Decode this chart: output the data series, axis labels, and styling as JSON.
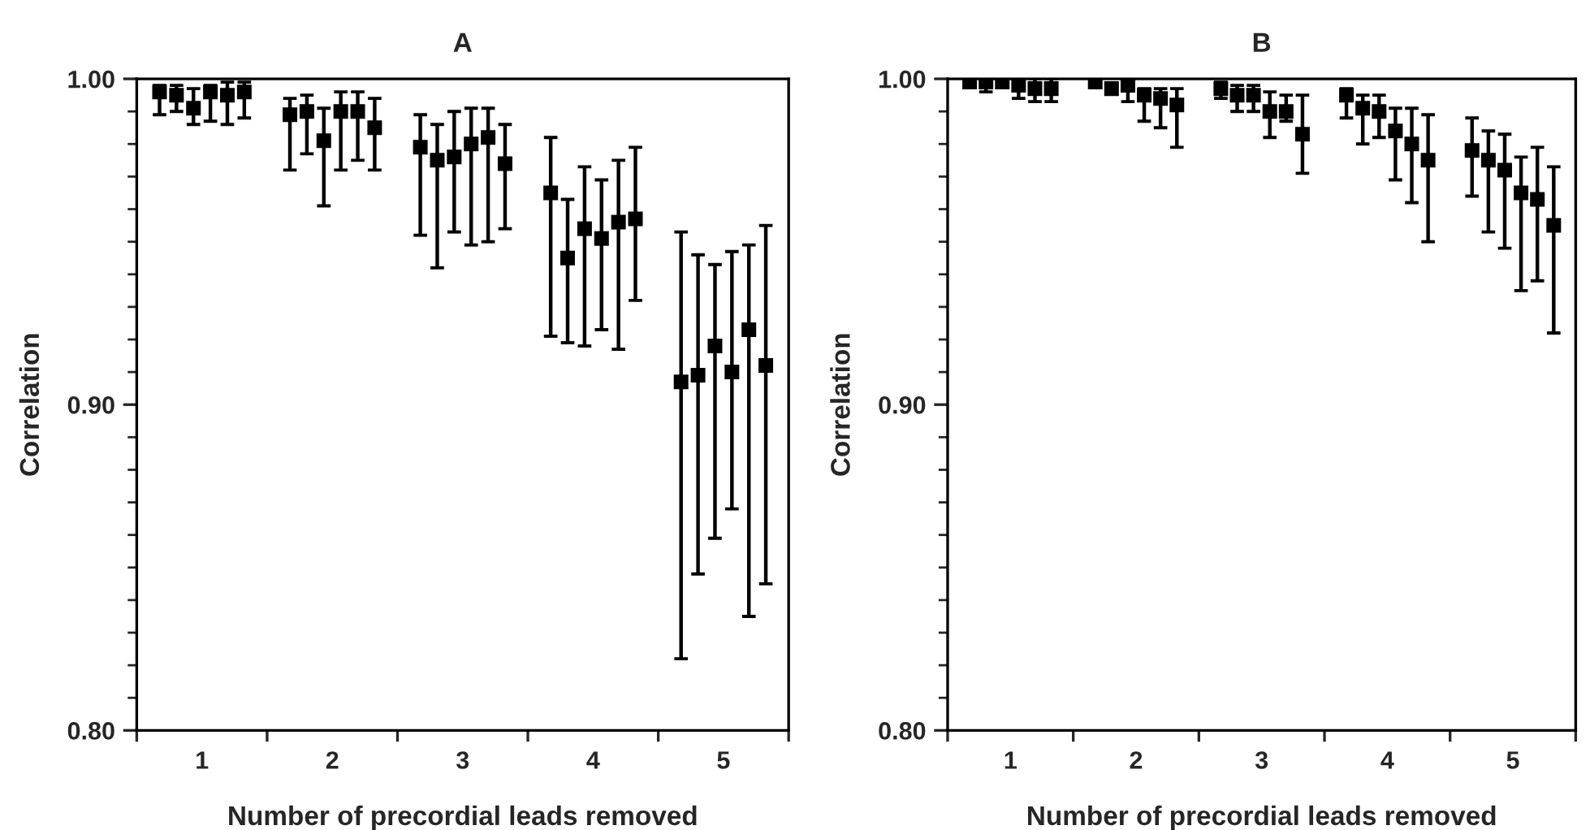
{
  "chart_data": [
    {
      "type": "scatter",
      "title": "A",
      "xlabel": "Number of precordial leads removed",
      "ylabel": "Correlation",
      "marker": "square",
      "grid": false,
      "xlim": [
        0.5,
        5.5
      ],
      "xticks": [
        {
          "value": 0.5,
          "label": null
        },
        {
          "value": 1,
          "label": "1"
        },
        {
          "value": 1.5,
          "label": null
        },
        {
          "value": 2,
          "label": "2"
        },
        {
          "value": 2.5,
          "label": null
        },
        {
          "value": 3,
          "label": "3"
        },
        {
          "value": 3.5,
          "label": null
        },
        {
          "value": 4,
          "label": "4"
        },
        {
          "value": 4.5,
          "label": null
        },
        {
          "value": 5,
          "label": "5"
        },
        {
          "value": 5.5,
          "label": null
        }
      ],
      "ylim": [
        0.8,
        1.0
      ],
      "yticks": [
        {
          "value": 0.8,
          "label": "0.80"
        },
        {
          "value": 0.81,
          "label": null
        },
        {
          "value": 0.82,
          "label": null
        },
        {
          "value": 0.83,
          "label": null
        },
        {
          "value": 0.84,
          "label": null
        },
        {
          "value": 0.85,
          "label": null
        },
        {
          "value": 0.86,
          "label": null
        },
        {
          "value": 0.87,
          "label": null
        },
        {
          "value": 0.88,
          "label": null
        },
        {
          "value": 0.89,
          "label": null
        },
        {
          "value": 0.9,
          "label": "0.90"
        },
        {
          "value": 0.91,
          "label": null
        },
        {
          "value": 0.92,
          "label": null
        },
        {
          "value": 0.93,
          "label": null
        },
        {
          "value": 0.94,
          "label": null
        },
        {
          "value": 0.95,
          "label": null
        },
        {
          "value": 0.96,
          "label": null
        },
        {
          "value": 0.97,
          "label": null
        },
        {
          "value": 0.98,
          "label": null
        },
        {
          "value": 0.99,
          "label": null
        },
        {
          "value": 1.0,
          "label": "1.00"
        }
      ],
      "series": [
        {
          "color": "#000000",
          "x": [
            0.675,
            0.805,
            0.935,
            1.065,
            1.195,
            1.325,
            1.675,
            1.805,
            1.935,
            2.065,
            2.195,
            2.325,
            2.675,
            2.805,
            2.935,
            3.065,
            3.195,
            3.325,
            3.675,
            3.805,
            3.935,
            4.065,
            4.195,
            4.325,
            4.675,
            4.805,
            4.935,
            5.065,
            5.195,
            5.325
          ],
          "values": [
            0.996,
            0.995,
            0.991,
            0.996,
            0.995,
            0.996,
            0.989,
            0.99,
            0.981,
            0.99,
            0.99,
            0.985,
            0.979,
            0.975,
            0.976,
            0.98,
            0.982,
            0.974,
            0.965,
            0.945,
            0.954,
            0.951,
            0.956,
            0.957,
            0.907,
            0.909,
            0.918,
            0.91,
            0.923,
            0.912
          ],
          "errors": [
            [
              0.989,
              0.998
            ],
            [
              0.99,
              0.998
            ],
            [
              0.986,
              0.997
            ],
            [
              0.987,
              0.998
            ],
            [
              0.986,
              0.999
            ],
            [
              0.988,
              0.999
            ],
            [
              0.972,
              0.994
            ],
            [
              0.977,
              0.995
            ],
            [
              0.961,
              0.991
            ],
            [
              0.972,
              0.996
            ],
            [
              0.975,
              0.996
            ],
            [
              0.972,
              0.994
            ],
            [
              0.952,
              0.989
            ],
            [
              0.942,
              0.986
            ],
            [
              0.953,
              0.99
            ],
            [
              0.949,
              0.991
            ],
            [
              0.95,
              0.991
            ],
            [
              0.954,
              0.986
            ],
            [
              0.921,
              0.982
            ],
            [
              0.919,
              0.963
            ],
            [
              0.918,
              0.973
            ],
            [
              0.923,
              0.969
            ],
            [
              0.917,
              0.975
            ],
            [
              0.932,
              0.979
            ],
            [
              0.822,
              0.953
            ],
            [
              0.848,
              0.946
            ],
            [
              0.859,
              0.943
            ],
            [
              0.868,
              0.947
            ],
            [
              0.835,
              0.949
            ],
            [
              0.845,
              0.955
            ]
          ]
        }
      ]
    },
    {
      "type": "scatter",
      "title": "B",
      "xlabel": "Number of precordial leads removed",
      "ylabel": "Correlation",
      "marker": "square",
      "grid": false,
      "xlim": [
        0.5,
        5.5
      ],
      "xticks": [
        {
          "value": 0.5,
          "label": null
        },
        {
          "value": 1,
          "label": "1"
        },
        {
          "value": 1.5,
          "label": null
        },
        {
          "value": 2,
          "label": "2"
        },
        {
          "value": 2.5,
          "label": null
        },
        {
          "value": 3,
          "label": "3"
        },
        {
          "value": 3.5,
          "label": null
        },
        {
          "value": 4,
          "label": "4"
        },
        {
          "value": 4.5,
          "label": null
        },
        {
          "value": 5,
          "label": "5"
        },
        {
          "value": 5.5,
          "label": null
        }
      ],
      "ylim": [
        0.8,
        1.0
      ],
      "yticks": [
        {
          "value": 0.8,
          "label": "0.80"
        },
        {
          "value": 0.81,
          "label": null
        },
        {
          "value": 0.82,
          "label": null
        },
        {
          "value": 0.83,
          "label": null
        },
        {
          "value": 0.84,
          "label": null
        },
        {
          "value": 0.85,
          "label": null
        },
        {
          "value": 0.86,
          "label": null
        },
        {
          "value": 0.87,
          "label": null
        },
        {
          "value": 0.88,
          "label": null
        },
        {
          "value": 0.89,
          "label": null
        },
        {
          "value": 0.9,
          "label": "0.90"
        },
        {
          "value": 0.91,
          "label": null
        },
        {
          "value": 0.92,
          "label": null
        },
        {
          "value": 0.93,
          "label": null
        },
        {
          "value": 0.94,
          "label": null
        },
        {
          "value": 0.95,
          "label": null
        },
        {
          "value": 0.96,
          "label": null
        },
        {
          "value": 0.97,
          "label": null
        },
        {
          "value": 0.98,
          "label": null
        },
        {
          "value": 0.99,
          "label": null
        },
        {
          "value": 1.0,
          "label": "1.00"
        }
      ],
      "series": [
        {
          "color": "#000000",
          "x": [
            0.675,
            0.805,
            0.935,
            1.065,
            1.195,
            1.325,
            1.675,
            1.805,
            1.935,
            2.065,
            2.195,
            2.325,
            2.675,
            2.805,
            2.935,
            3.065,
            3.195,
            3.325,
            3.675,
            3.805,
            3.935,
            4.065,
            4.195,
            4.325,
            4.675,
            4.805,
            4.935,
            5.065,
            5.195,
            5.325
          ],
          "values": [
            0.999,
            0.999,
            0.999,
            0.998,
            0.997,
            0.997,
            0.999,
            0.997,
            0.998,
            0.995,
            0.994,
            0.992,
            0.997,
            0.995,
            0.995,
            0.99,
            0.99,
            0.983,
            0.995,
            0.991,
            0.99,
            0.984,
            0.98,
            0.975,
            0.978,
            0.975,
            0.972,
            0.965,
            0.963,
            0.955
          ],
          "errors": [
            null,
            [
              0.996,
              1.0
            ],
            null,
            [
              0.994,
              1.0
            ],
            [
              0.993,
              1.0
            ],
            [
              0.993,
              1.0
            ],
            null,
            null,
            [
              0.993,
              1.0
            ],
            [
              0.987,
              0.997
            ],
            [
              0.985,
              0.997
            ],
            [
              0.979,
              0.997
            ],
            [
              0.994,
              0.999
            ],
            [
              0.99,
              0.998
            ],
            [
              0.99,
              0.998
            ],
            [
              0.982,
              0.996
            ],
            [
              0.987,
              0.995
            ],
            [
              0.971,
              0.995
            ],
            [
              0.988,
              0.997
            ],
            [
              0.98,
              0.995
            ],
            [
              0.982,
              0.995
            ],
            [
              0.969,
              0.991
            ],
            [
              0.962,
              0.991
            ],
            [
              0.95,
              0.989
            ],
            [
              0.964,
              0.988
            ],
            [
              0.953,
              0.984
            ],
            [
              0.948,
              0.983
            ],
            [
              0.935,
              0.976
            ],
            [
              0.938,
              0.979
            ],
            [
              0.922,
              0.973
            ]
          ]
        }
      ]
    }
  ]
}
